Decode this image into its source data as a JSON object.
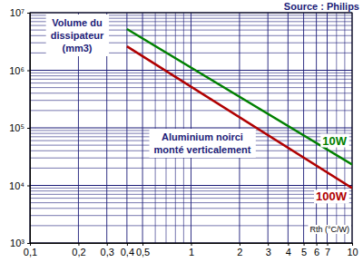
{
  "chart_data": {
    "type": "line",
    "y_label": "Volume du dissipateur (mm3)",
    "x_label": "Rth (°C/W)",
    "annotations": [
      "Source : Philips",
      "Aluminium noirci monté verticalement"
    ],
    "log": true,
    "grid": true,
    "x": [
      0.4,
      10
    ],
    "series": [
      {
        "name": "10W",
        "color": "#008000",
        "values": [
          5200000,
          23000
        ]
      },
      {
        "name": "100W",
        "color": "#b00000",
        "values": [
          2600000,
          9000
        ]
      }
    ],
    "xlim": [
      0.1,
      10
    ],
    "ylim": [
      1000,
      10000000
    ],
    "xticks": [
      {
        "value": 0.1,
        "label": "0,1"
      },
      {
        "value": 0.2,
        "label": "0,2"
      },
      {
        "value": 0.3,
        "label": "0,3"
      },
      {
        "value": 0.4,
        "label": "0,4"
      },
      {
        "value": 0.5,
        "label": "0,5"
      },
      1,
      2,
      3,
      4,
      5,
      6,
      7,
      10
    ],
    "yticks": [
      {
        "value": 1000,
        "label": "10³"
      },
      {
        "value": 10000,
        "label": "10⁴"
      },
      {
        "value": 100000,
        "label": "10⁵"
      },
      {
        "value": 1000000,
        "label": "10⁶"
      },
      {
        "value": 10000000,
        "label": "10⁷"
      }
    ]
  }
}
